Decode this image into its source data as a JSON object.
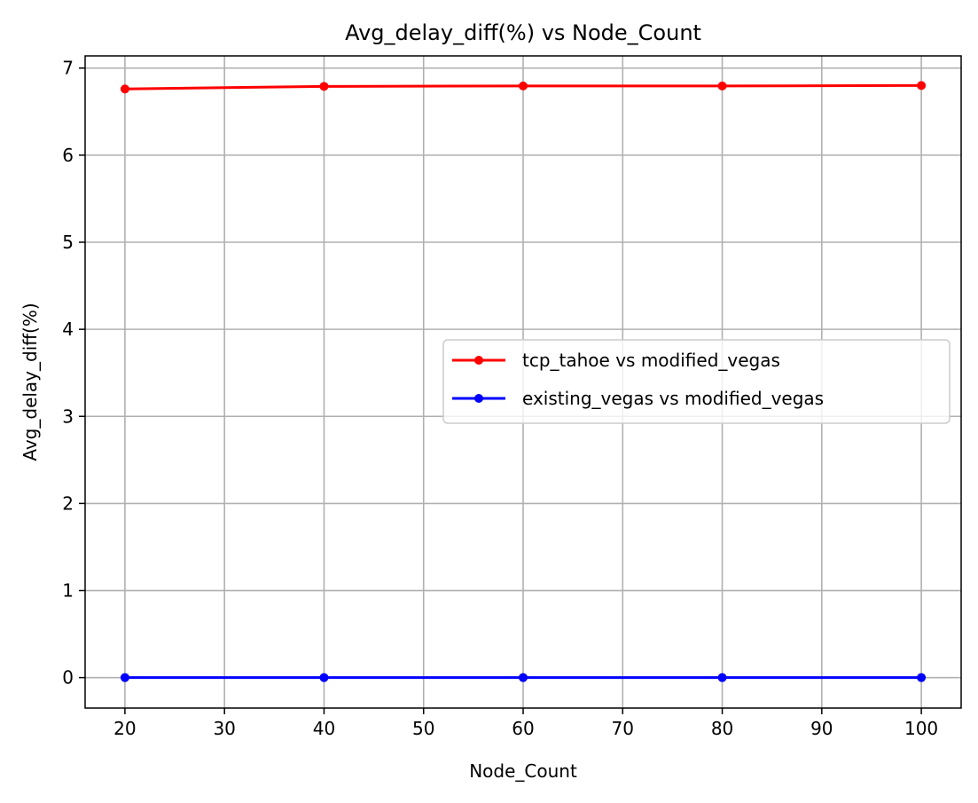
{
  "chart_data": {
    "type": "line",
    "title": "Avg_delay_diff(%) vs Node_Count",
    "xlabel": "Node_Count",
    "ylabel": "Avg_delay_diff(%)",
    "x": [
      20,
      40,
      60,
      80,
      100
    ],
    "xlim": [
      16,
      104
    ],
    "ylim": [
      -0.35,
      7.14
    ],
    "xticks": [
      20,
      30,
      40,
      50,
      60,
      70,
      80,
      90,
      100
    ],
    "yticks": [
      0,
      1,
      2,
      3,
      4,
      5,
      6,
      7
    ],
    "grid": true,
    "legend_position": "center-right",
    "series": [
      {
        "name": "tcp_tahoe vs modified_vegas",
        "color": "#ff0000",
        "marker": "circle",
        "values": [
          6.76,
          6.79,
          6.795,
          6.795,
          6.8
        ]
      },
      {
        "name": "existing_vegas vs modified_vegas",
        "color": "#0000ff",
        "marker": "circle",
        "values": [
          0.0,
          0.0,
          0.0,
          0.0,
          0.0
        ]
      }
    ]
  }
}
